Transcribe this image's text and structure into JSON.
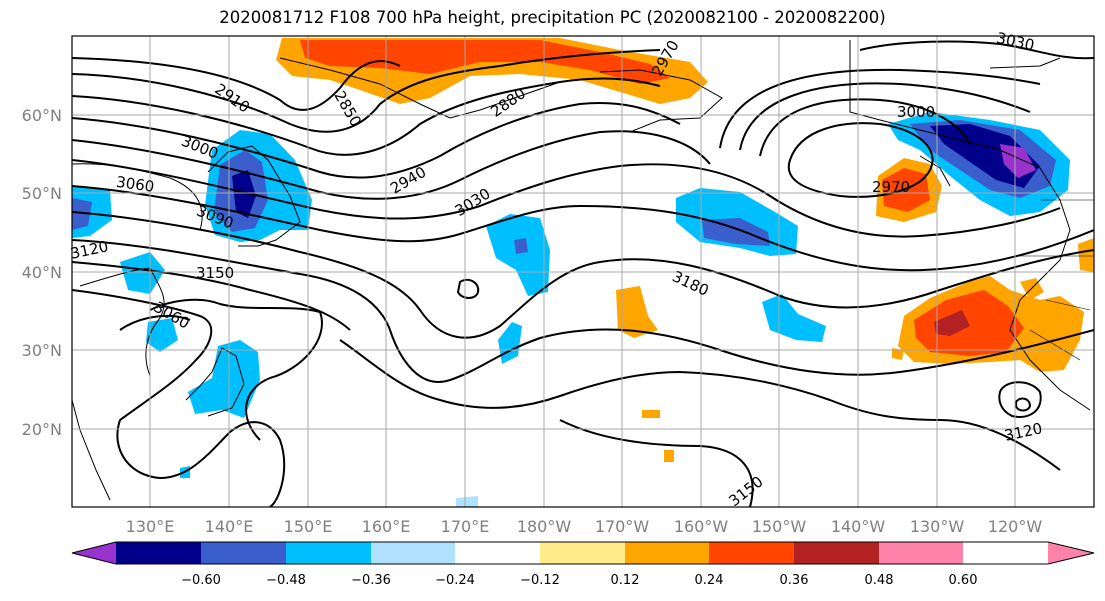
{
  "title": "2020081712 F108 700 hPa height, precipitation PC (2020082100 - 2020082200)",
  "map": {
    "lat_labels": [
      "60°N",
      "50°N",
      "40°N",
      "30°N",
      "20°N"
    ],
    "lon_labels": [
      "130°E",
      "140°E",
      "150°E",
      "160°E",
      "170°E",
      "180°W",
      "170°W",
      "160°W",
      "150°W",
      "140°W",
      "130°W",
      "120°W"
    ]
  },
  "contour_labels": [
    "2910",
    "2850",
    "2880",
    "2970",
    "3000",
    "3030",
    "3000",
    "2940",
    "3030",
    "2970",
    "3060",
    "3090",
    "3120",
    "3150",
    "3180",
    "3060",
    "3120",
    "3150"
  ],
  "colorbar": {
    "ticks": [
      "−0.60",
      "−0.48",
      "−0.36",
      "−0.24",
      "−0.12",
      "0.12",
      "0.24",
      "0.36",
      "0.48",
      "0.60"
    ],
    "colors": [
      "#9932cc",
      "#00008b",
      "#3a5fcd",
      "#00bfff",
      "#b0e2ff",
      "#ffffff",
      "#ffec8b",
      "#ffa500",
      "#ff4500",
      "#b22222",
      "#ff82ab"
    ]
  }
}
